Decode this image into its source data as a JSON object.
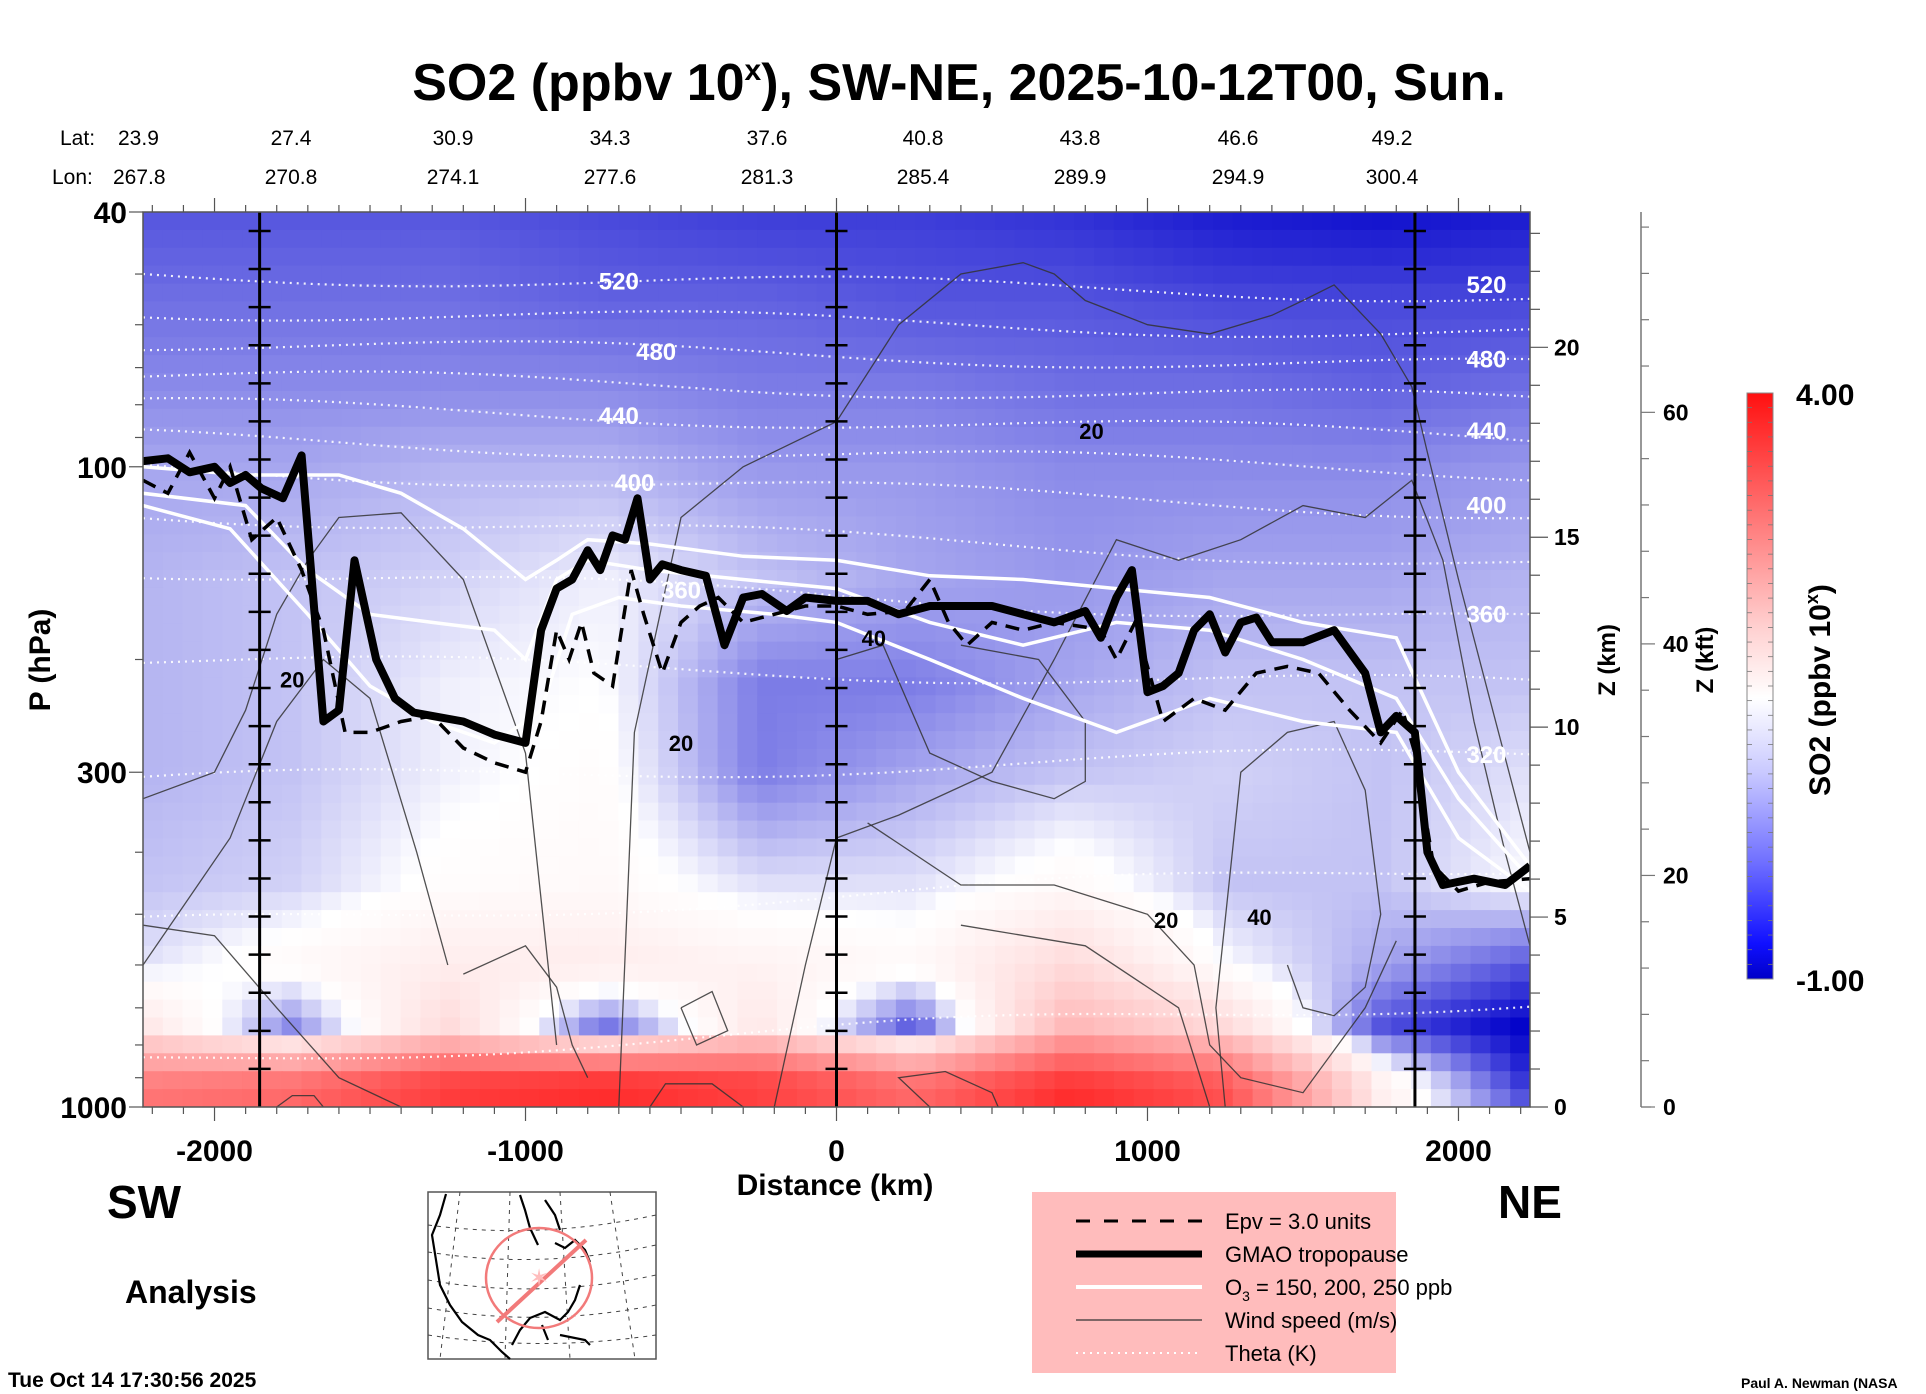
{
  "chart_data": {
    "type": "heatmap",
    "title": "SO2 (ppbv 10",
    "title_sup": "x",
    "title_rest": "), SW-NE, 2025-10-12T00, Sun.",
    "xlabel": "Distance (km)",
    "ylabel": "P (hPa)",
    "y2label": "Z (km)",
    "y3label": "Z (kft)",
    "xlim": [
      -2230,
      2230
    ],
    "ylim_hpa": [
      1000,
      40
    ],
    "yscale": "log",
    "x_ticks": [
      -2000,
      -1000,
      0,
      1000,
      2000
    ],
    "x_tick_labels": [
      "-2000",
      "-1000",
      "0",
      "1000",
      "2000"
    ],
    "y_ticks": [
      40,
      100,
      300,
      1000
    ],
    "y_tick_labels": [
      "40",
      "100",
      "300",
      "1000"
    ],
    "z_km_ticks": [
      0,
      5,
      10,
      15,
      20
    ],
    "z_km_tick_labels": [
      "0",
      "5",
      "10",
      "15",
      "20"
    ],
    "z_kft_ticks": [
      0,
      20,
      40,
      60
    ],
    "z_kft_tick_labels": [
      "0",
      "20",
      "40",
      "60"
    ],
    "vertical_marker_lines_km": [
      -1855,
      0,
      1860
    ],
    "lat_label": "Lat:",
    "lon_label": "Lon:",
    "lat_values": [
      "23.9",
      "27.4",
      "30.9",
      "34.3",
      "37.6",
      "40.8",
      "43.8",
      "46.6",
      "49.2"
    ],
    "lon_values": [
      "267.8",
      "270.8",
      "274.1",
      "277.6",
      "281.3",
      "285.4",
      "289.9",
      "294.9",
      "300.4"
    ],
    "lat_lon_positions_km": [
      -2220,
      -1750,
      -1230,
      -725,
      -220,
      280,
      785,
      1295,
      1790
    ],
    "colorbar": {
      "label": "SO2 (ppbv 10",
      "label_sup": "x",
      "label_end": ")",
      "min": -1.0,
      "max": 4.0,
      "min_label": "-1.00",
      "max_label": "4.00",
      "colors": [
        "#0000cc",
        "#ffffff",
        "#ff0000"
      ],
      "levels": 40
    },
    "field_rows": [
      {
        "p": 40,
        "values": [
          -0.6,
          -0.6,
          -0.6,
          -0.65,
          -0.7,
          -0.7,
          -0.75,
          -0.85,
          -0.9,
          -0.85
        ]
      },
      {
        "p": 55,
        "values": [
          -0.5,
          -0.5,
          -0.5,
          -0.55,
          -0.55,
          -0.6,
          -0.6,
          -0.65,
          -0.65,
          -0.65
        ]
      },
      {
        "p": 75,
        "values": [
          -0.4,
          -0.4,
          -0.4,
          -0.4,
          -0.45,
          -0.45,
          -0.5,
          -0.5,
          -0.55,
          -0.5
        ]
      },
      {
        "p": 100,
        "values": [
          -0.3,
          -0.3,
          -0.25,
          -0.25,
          -0.35,
          -0.35,
          -0.4,
          -0.4,
          -0.4,
          -0.35
        ]
      },
      {
        "p": 150,
        "values": [
          -0.25,
          -0.2,
          -0.15,
          -0.05,
          -0.2,
          -0.3,
          -0.35,
          -0.3,
          -0.3,
          -0.25
        ]
      },
      {
        "p": 220,
        "values": [
          -0.25,
          -0.2,
          -0.05,
          0.0,
          -0.45,
          -0.45,
          -0.3,
          -0.2,
          -0.2,
          -0.2
        ]
      },
      {
        "p": 300,
        "values": [
          -0.25,
          -0.2,
          -0.05,
          0.05,
          -0.45,
          -0.3,
          -0.2,
          -0.15,
          -0.2,
          -0.1
        ]
      },
      {
        "p": 450,
        "values": [
          -0.2,
          -0.15,
          0.05,
          0.1,
          -0.1,
          -0.1,
          0.1,
          -0.2,
          -0.2,
          0.0
        ]
      },
      {
        "p": 600,
        "values": [
          -0.1,
          0.1,
          0.3,
          0.3,
          0.2,
          0.1,
          0.6,
          0.0,
          -0.3,
          -0.6
        ]
      },
      {
        "p": 750,
        "values": [
          0.4,
          -0.4,
          0.6,
          -0.5,
          0.4,
          -0.6,
          1.2,
          0.6,
          -0.6,
          -1.0
        ]
      },
      {
        "p": 900,
        "values": [
          2.0,
          2.2,
          3.0,
          3.2,
          3.0,
          2.2,
          3.2,
          2.6,
          0.2,
          -0.8
        ]
      },
      {
        "p": 1000,
        "values": [
          2.4,
          2.6,
          3.3,
          3.6,
          3.2,
          2.6,
          3.6,
          3.0,
          0.3,
          -0.6
        ]
      }
    ],
    "field_x_km": [
      -2230,
      -1750,
      -1250,
      -750,
      -250,
      250,
      750,
      1250,
      1750,
      2230
    ],
    "series": [
      {
        "name": "GMAO tropopause",
        "style": "thick-black",
        "x": [
          -2230,
          -2150,
          -2080,
          -2000,
          -1950,
          -1900,
          -1850,
          -1780,
          -1720,
          -1650,
          -1600,
          -1550,
          -1480,
          -1420,
          -1360,
          -1300,
          -1200,
          -1100,
          -1000,
          -950,
          -900,
          -850,
          -800,
          -760,
          -720,
          -680,
          -640,
          -600,
          -560,
          -500,
          -420,
          -360,
          -300,
          -240,
          -160,
          -100,
          0,
          100,
          200,
          300,
          400,
          500,
          600,
          700,
          800,
          850,
          900,
          950,
          1000,
          1050,
          1100,
          1150,
          1200,
          1250,
          1300,
          1350,
          1400,
          1500,
          1600,
          1700,
          1750,
          1800,
          1860,
          1900,
          1950,
          2050,
          2150,
          2230
        ],
        "y": [
          98,
          97,
          102,
          100,
          106,
          103,
          108,
          112,
          96,
          250,
          240,
          140,
          200,
          230,
          242,
          245,
          250,
          262,
          270,
          180,
          155,
          150,
          135,
          145,
          128,
          130,
          112,
          150,
          142,
          145,
          148,
          190,
          160,
          158,
          168,
          160,
          162,
          162,
          170,
          165,
          165,
          165,
          170,
          175,
          168,
          185,
          160,
          145,
          225,
          220,
          210,
          180,
          170,
          195,
          175,
          172,
          188,
          188,
          180,
          210,
          260,
          245,
          260,
          400,
          450,
          440,
          450,
          420
        ]
      },
      {
        "name": "Epv = 3.0 units",
        "style": "dashed-black",
        "x": [
          -2230,
          -2150,
          -2080,
          -2000,
          -1950,
          -1880,
          -1800,
          -1720,
          -1650,
          -1580,
          -1500,
          -1400,
          -1300,
          -1200,
          -1100,
          -1000,
          -950,
          -900,
          -860,
          -820,
          -780,
          -720,
          -660,
          -620,
          -560,
          -500,
          -440,
          -380,
          -300,
          -200,
          -100,
          0,
          100,
          220,
          300,
          360,
          420,
          500,
          600,
          700,
          800,
          850,
          900,
          960,
          1050,
          1150,
          1250,
          1350,
          1450,
          1550,
          1650,
          1750,
          1820,
          1860,
          1920,
          2000,
          2100,
          2230
        ],
        "y": [
          105,
          110,
          95,
          112,
          100,
          130,
          120,
          145,
          180,
          260,
          260,
          250,
          245,
          275,
          290,
          300,
          250,
          180,
          200,
          175,
          210,
          220,
          145,
          170,
          210,
          175,
          165,
          160,
          175,
          170,
          165,
          165,
          170,
          168,
          150,
          175,
          190,
          175,
          180,
          175,
          178,
          180,
          200,
          175,
          250,
          230,
          240,
          210,
          205,
          210,
          240,
          270,
          240,
          280,
          420,
          460,
          445,
          440
        ]
      },
      {
        "name": "O3 = 150 ppb",
        "style": "white",
        "x": [
          -2230,
          -1900,
          -1600,
          -1400,
          -1200,
          -1000,
          -900,
          -800,
          -600,
          -300,
          0,
          300,
          600,
          900,
          1200,
          1500,
          1800,
          2000,
          2230
        ],
        "y": [
          100,
          103,
          103,
          110,
          125,
          150,
          140,
          130,
          132,
          138,
          140,
          148,
          150,
          155,
          160,
          175,
          185,
          300,
          420
        ]
      },
      {
        "name": "O3 = 200 ppb",
        "style": "white",
        "x": [
          -2230,
          -1900,
          -1700,
          -1500,
          -1300,
          -1100,
          -1000,
          -900,
          -800,
          -600,
          -300,
          0,
          300,
          600,
          900,
          1200,
          1500,
          1800,
          2000,
          2230
        ],
        "y": [
          110,
          115,
          145,
          170,
          175,
          180,
          200,
          150,
          140,
          145,
          150,
          155,
          175,
          190,
          175,
          180,
          200,
          230,
          330,
          440
        ]
      },
      {
        "name": "O3 = 250 ppb",
        "style": "white",
        "x": [
          -2230,
          -1950,
          -1700,
          -1500,
          -1300,
          -1100,
          -950,
          -850,
          -700,
          -500,
          -200,
          0,
          300,
          600,
          900,
          1200,
          1500,
          1800,
          2000,
          2230
        ],
        "y": [
          115,
          125,
          170,
          220,
          250,
          270,
          240,
          170,
          160,
          165,
          170,
          175,
          200,
          230,
          260,
          230,
          250,
          260,
          380,
          460
        ]
      }
    ],
    "theta_contours": [
      {
        "label": "520",
        "p_left": 50,
        "p_right": 54,
        "label_x_km": -700
      },
      {
        "label": "",
        "p_left": 57,
        "p_right": 62,
        "label_x_km": null
      },
      {
        "label": "480",
        "p_left": 64,
        "p_right": 70,
        "label_x_km": -580
      },
      {
        "label": "",
        "p_left": 72,
        "p_right": 79,
        "label_x_km": null
      },
      {
        "label": "440",
        "p_left": 80,
        "p_right": 90,
        "label_x_km": -700
      },
      {
        "label": "",
        "p_left": 90,
        "p_right": 102,
        "label_x_km": null
      },
      {
        "label": "400",
        "p_left": 100,
        "p_right": 118,
        "label_x_km": -650
      },
      {
        "label": "",
        "p_left": 118,
        "p_right": 142,
        "label_x_km": null
      },
      {
        "label": "360",
        "p_left": 145,
        "p_right": 175,
        "label_x_km": -500
      },
      {
        "label": "",
        "p_left": 200,
        "p_right": 220,
        "label_x_km": null
      },
      {
        "label": "320",
        "p_left": 310,
        "p_right": 280,
        "label_x_km": null
      },
      {
        "label": "",
        "p_left": 520,
        "p_right": 420,
        "label_x_km": null
      },
      {
        "label": "",
        "p_left": 850,
        "p_right": 680,
        "label_x_km": null
      }
    ],
    "right_theta_labels": [
      "520",
      "480",
      "440",
      "400",
      "360",
      "320"
    ],
    "right_theta_p": [
      52,
      68,
      88,
      115,
      170,
      282
    ],
    "wind_labels": [
      {
        "text": "20",
        "x_km": -1750,
        "p": 215
      },
      {
        "text": "20",
        "x_km": -500,
        "p": 270
      },
      {
        "text": "40",
        "x_km": 120,
        "p": 185
      },
      {
        "text": "20",
        "x_km": 820,
        "p": 88
      },
      {
        "text": "20",
        "x_km": 1060,
        "p": 510
      },
      {
        "text": "40",
        "x_km": 1360,
        "p": 505
      }
    ],
    "legend": [
      {
        "style": "dashed-black",
        "label": "Epv = 3.0 units"
      },
      {
        "style": "thick-black",
        "label": "GMAO tropopause"
      },
      {
        "style": "white",
        "label": "O",
        "sub": "3",
        "label_rest": " = 150, 200, 250 ppb"
      },
      {
        "style": "thin-black",
        "label": "Wind speed (m/s)"
      },
      {
        "style": "dotted-white",
        "label": "Theta (K)"
      }
    ],
    "legend_bg": "#ffbcbc",
    "direction_left": "SW",
    "direction_right": "NE",
    "analysis_label": "Analysis",
    "timestamp": "Tue Oct 14 17:30:56 2025",
    "credit": "Paul A. Newman (NASA"
  }
}
